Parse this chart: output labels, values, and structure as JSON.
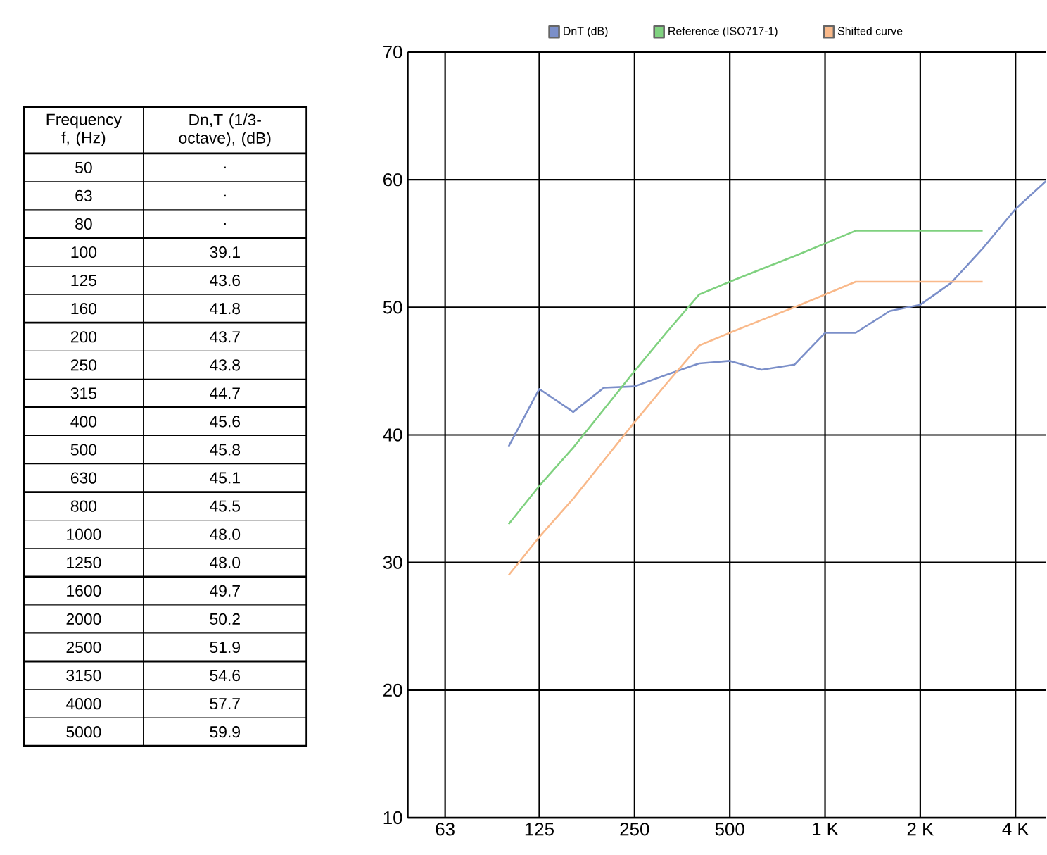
{
  "chart_data": [
    {
      "type": "other",
      "annotations": [
        "Frequency f, (Hz)",
        "Dn,T (1/3-octave), (dB)"
      ],
      "categories": [
        "50",
        "63",
        "80",
        "100",
        "125",
        "160",
        "200",
        "250",
        "315",
        "400",
        "500",
        "630",
        "800",
        "1000",
        "1250",
        "1600",
        "2000",
        "2500",
        "3150",
        "4000",
        "5000"
      ],
      "value_labels": [
        ".",
        ".",
        ".",
        "39.1",
        "43.6",
        "41.8",
        "43.7",
        "43.8",
        "44.7",
        "45.6",
        "45.8",
        "45.1",
        "45.5",
        "48.0",
        "48.0",
        "49.7",
        "50.2",
        "51.9",
        "54.6",
        "57.7",
        "59.9"
      ]
    },
    {
      "type": "line",
      "log": "x",
      "xlim": [
        48,
        5000
      ],
      "ylim": [
        10,
        70
      ],
      "xticks": [
        63,
        125,
        250,
        500,
        {
          "value": 1000,
          "label": "1 K"
        },
        {
          "value": 2000,
          "label": "2 K"
        },
        {
          "value": 4000,
          "label": "4 K"
        }
      ],
      "yticks": [
        10,
        20,
        30,
        40,
        50,
        60,
        70
      ],
      "grid": true,
      "legend": "top",
      "series": [
        {
          "name": "DnT (dB)",
          "color": "#7b8fc9",
          "x": [
            100,
            125,
            160,
            200,
            250,
            315,
            400,
            500,
            630,
            800,
            1000,
            1250,
            1600,
            2000,
            2500,
            3150,
            4000,
            5000
          ],
          "values": [
            39.1,
            43.6,
            41.8,
            43.7,
            43.8,
            44.7,
            45.6,
            45.8,
            45.1,
            45.5,
            48.0,
            48.0,
            49.7,
            50.2,
            51.9,
            54.6,
            57.7,
            59.9
          ]
        },
        {
          "name": "Reference (ISO717-1)",
          "color": "#7fd17f",
          "x": [
            100,
            125,
            160,
            200,
            250,
            315,
            400,
            500,
            630,
            800,
            1000,
            1250,
            1600,
            2000,
            2500,
            3150
          ],
          "values": [
            33,
            36,
            39,
            42,
            45,
            48,
            51,
            52,
            53,
            54,
            55,
            56,
            56,
            56,
            56,
            56
          ]
        },
        {
          "name": "Shifted curve",
          "color": "#f9b98a",
          "x": [
            100,
            125,
            160,
            200,
            250,
            315,
            400,
            500,
            630,
            800,
            1000,
            1250,
            1600,
            2000,
            2500,
            3150
          ],
          "values": [
            29,
            32,
            35,
            38,
            41,
            44,
            47,
            48,
            49,
            50,
            51,
            52,
            52,
            52,
            52,
            52
          ]
        }
      ]
    }
  ]
}
